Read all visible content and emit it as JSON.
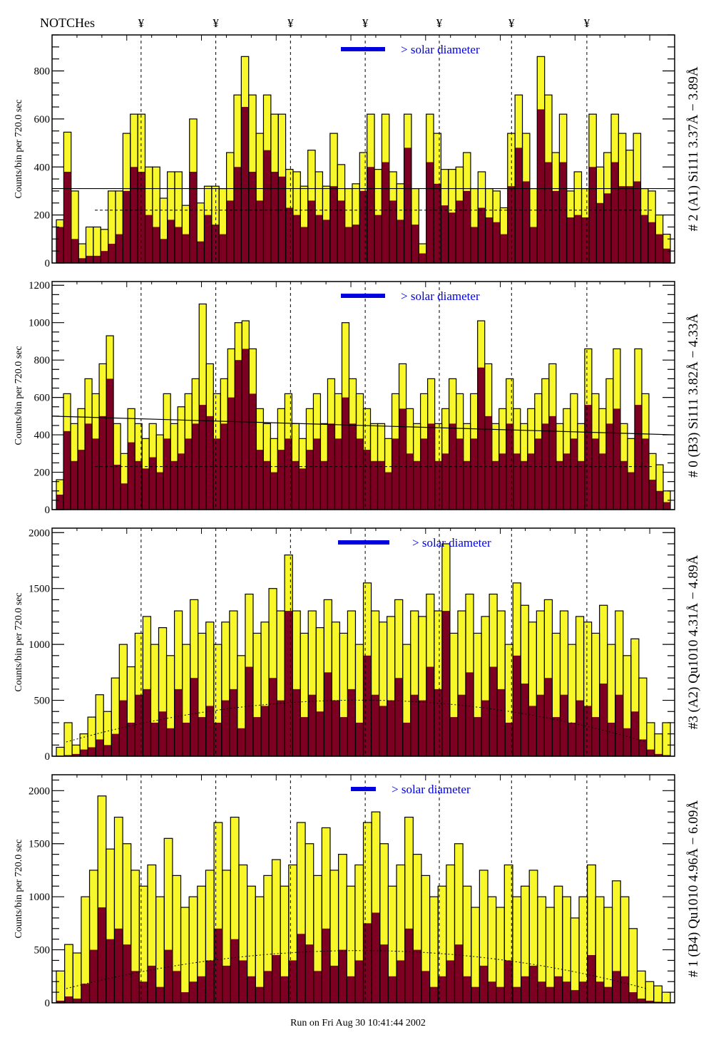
{
  "header": {
    "notches_label": "NOTCHes",
    "notch_glyph": "¥"
  },
  "footer": {
    "run_text": "Run on Fri Aug 30 10:41:44 2002"
  },
  "colors": {
    "total_fill": "#f7f72a",
    "signal_fill": "#7d0022",
    "legend_blue": "#0000e0",
    "outline": "#000000"
  },
  "chart_data": [
    {
      "type": "bar",
      "title": "# 2 (A1) Si111  3.37Å − 3.89Å",
      "ylabel": "Counts/bin per    720.0 sec",
      "xlabel": "",
      "ylim": [
        0,
        950
      ],
      "yticks": [
        0,
        200,
        400,
        600,
        800
      ],
      "minor_step": 50,
      "legend": {
        "label": "> solar diameter",
        "position": "top-center"
      },
      "reference_lines": {
        "solid": 310,
        "dashed": 220
      },
      "notch_positions": [
        0.143,
        0.263,
        0.383,
        0.503,
        0.622,
        0.738,
        0.859
      ],
      "series": [
        {
          "name": "total",
          "values": [
            180,
            545,
            300,
            80,
            150,
            150,
            140,
            300,
            300,
            540,
            620,
            620,
            400,
            400,
            270,
            380,
            380,
            240,
            600,
            250,
            320,
            320,
            310,
            460,
            700,
            860,
            700,
            540,
            700,
            620,
            620,
            390,
            380,
            320,
            470,
            380,
            320,
            540,
            410,
            310,
            330,
            460,
            620,
            390,
            620,
            380,
            330,
            620,
            310,
            80,
            620,
            540,
            390,
            390,
            400,
            460,
            310,
            380,
            310,
            300,
            230,
            540,
            700,
            540,
            310,
            860,
            700,
            460,
            620,
            300,
            380,
            310,
            620,
            400,
            460,
            620,
            540,
            470,
            540,
            310,
            300,
            200,
            120
          ]
        },
        {
          "name": "signal",
          "values": [
            150,
            380,
            100,
            20,
            30,
            30,
            50,
            80,
            120,
            300,
            400,
            380,
            200,
            150,
            100,
            180,
            150,
            120,
            380,
            90,
            200,
            160,
            120,
            260,
            400,
            650,
            380,
            260,
            470,
            380,
            360,
            230,
            200,
            150,
            260,
            200,
            180,
            320,
            260,
            150,
            160,
            300,
            400,
            200,
            420,
            260,
            180,
            480,
            160,
            40,
            420,
            330,
            240,
            210,
            260,
            300,
            150,
            230,
            190,
            170,
            120,
            320,
            480,
            340,
            150,
            640,
            420,
            300,
            420,
            190,
            200,
            190,
            400,
            250,
            290,
            420,
            320,
            320,
            340,
            200,
            170,
            120,
            60
          ]
        }
      ]
    },
    {
      "type": "bar",
      "title": "# 0 (B3) Si111  3.82Å − 4.33Å",
      "ylabel": "Counts/bin per    720.0 sec",
      "xlabel": "",
      "ylim": [
        0,
        1220
      ],
      "yticks": [
        0,
        200,
        400,
        600,
        800,
        1000,
        1200
      ],
      "minor_step": 50,
      "legend": {
        "label": "> solar diameter",
        "position": "top-center"
      },
      "reference_lines": {
        "solid_start": 500,
        "solid_end": 400,
        "dashed": 230
      },
      "notch_positions": [
        0.143,
        0.263,
        0.383,
        0.503,
        0.622,
        0.738,
        0.859
      ],
      "series": [
        {
          "name": "total",
          "values": [
            160,
            620,
            460,
            540,
            700,
            620,
            780,
            930,
            460,
            300,
            540,
            460,
            380,
            460,
            400,
            620,
            460,
            550,
            620,
            700,
            1100,
            780,
            620,
            700,
            860,
            1000,
            1010,
            860,
            540,
            460,
            380,
            540,
            620,
            460,
            380,
            540,
            620,
            460,
            700,
            620,
            1000,
            700,
            620,
            540,
            460,
            460,
            380,
            620,
            780,
            540,
            460,
            620,
            700,
            460,
            540,
            700,
            620,
            460,
            620,
            1010,
            780,
            460,
            540,
            700,
            540,
            460,
            540,
            620,
            700,
            780,
            460,
            540,
            620,
            460,
            860,
            620,
            540,
            700,
            860,
            460,
            380,
            860,
            620,
            300,
            240,
            100
          ]
        },
        {
          "name": "signal",
          "values": [
            80,
            420,
            260,
            320,
            460,
            380,
            500,
            700,
            240,
            140,
            360,
            260,
            220,
            280,
            200,
            380,
            260,
            300,
            380,
            460,
            560,
            500,
            380,
            460,
            600,
            800,
            860,
            620,
            320,
            260,
            200,
            320,
            380,
            260,
            220,
            320,
            380,
            260,
            460,
            380,
            600,
            460,
            380,
            320,
            260,
            260,
            200,
            380,
            540,
            300,
            260,
            380,
            460,
            260,
            300,
            460,
            380,
            260,
            380,
            760,
            500,
            260,
            300,
            460,
            300,
            260,
            300,
            380,
            460,
            500,
            260,
            300,
            380,
            260,
            560,
            380,
            300,
            460,
            540,
            260,
            200,
            560,
            380,
            160,
            100,
            40
          ]
        }
      ]
    },
    {
      "type": "bar",
      "title": "#3 (A2) Qu1010  4.31Å − 4.89Å",
      "ylabel": "Counts/bin per    720.0 sec",
      "xlabel": "",
      "ylim": [
        0,
        2040
      ],
      "yticks": [
        0,
        500,
        1000,
        1500,
        2000
      ],
      "minor_step": 100,
      "legend": {
        "label": "> solar diameter",
        "position": "top-center"
      },
      "reference_lines": {
        "dashed_curve_peak": 700
      },
      "notch_positions": [
        0.143,
        0.263,
        0.383,
        0.503,
        0.622,
        0.738,
        0.859
      ],
      "series": [
        {
          "name": "total",
          "values": [
            80,
            300,
            100,
            200,
            350,
            550,
            400,
            700,
            1000,
            800,
            1100,
            1250,
            1000,
            1150,
            900,
            1300,
            1000,
            1400,
            1100,
            1200,
            1000,
            1200,
            1300,
            900,
            1450,
            1100,
            1200,
            1500,
            1300,
            1800,
            1300,
            1100,
            1300,
            1150,
            1400,
            1200,
            1100,
            1300,
            1000,
            1550,
            1300,
            1200,
            1250,
            1400,
            1000,
            1300,
            1250,
            1450,
            1300,
            1900,
            1100,
            1300,
            1450,
            1100,
            1250,
            1450,
            1300,
            1000,
            1550,
            1350,
            1200,
            1300,
            1400,
            1100,
            1300,
            1000,
            1250,
            1200,
            1100,
            1350,
            1000,
            1300,
            900,
            1050,
            700,
            300,
            200,
            300
          ]
        },
        {
          "name": "signal",
          "values": [
            0,
            10,
            20,
            60,
            80,
            150,
            100,
            200,
            500,
            300,
            550,
            600,
            300,
            400,
            250,
            600,
            300,
            700,
            350,
            450,
            300,
            500,
            600,
            250,
            800,
            350,
            450,
            700,
            500,
            1300,
            600,
            350,
            550,
            400,
            750,
            500,
            350,
            600,
            300,
            900,
            550,
            450,
            500,
            700,
            300,
            550,
            500,
            800,
            600,
            1300,
            350,
            550,
            750,
            350,
            500,
            800,
            600,
            300,
            900,
            650,
            450,
            550,
            700,
            350,
            550,
            300,
            500,
            450,
            350,
            650,
            300,
            550,
            250,
            400,
            150,
            60,
            20,
            10
          ]
        }
      ]
    },
    {
      "type": "bar",
      "title": "# 1 (B4) Qu1010  4.96Å − 6.09Å",
      "ylabel": "Counts/bin per    720.0 sec",
      "xlabel": "",
      "ylim": [
        0,
        2150
      ],
      "yticks": [
        0,
        500,
        1000,
        1500,
        2000
      ],
      "minor_step": 100,
      "legend": {
        "label": "> solar diameter",
        "position": "top-center"
      },
      "reference_lines": {
        "dashed_curve_peak": 680
      },
      "notch_positions": [
        0.143,
        0.263,
        0.383,
        0.503,
        0.622,
        0.738,
        0.859
      ],
      "series": [
        {
          "name": "total",
          "values": [
            300,
            550,
            470,
            1000,
            1250,
            1950,
            1450,
            1750,
            1500,
            1250,
            1100,
            1300,
            1000,
            1550,
            1200,
            900,
            1000,
            1100,
            1250,
            1700,
            1250,
            1750,
            1300,
            1100,
            1000,
            1200,
            1350,
            1100,
            1300,
            1700,
            1500,
            1200,
            1650,
            1250,
            1400,
            1100,
            1300,
            1700,
            1800,
            1500,
            1100,
            1300,
            1750,
            1400,
            1200,
            1000,
            1100,
            1300,
            1500,
            1100,
            900,
            1250,
            1000,
            900,
            1300,
            1000,
            1100,
            1250,
            1000,
            900,
            1100,
            1000,
            800,
            1000,
            1300,
            1000,
            900,
            1150,
            1000,
            700,
            300,
            200,
            160,
            100
          ]
        },
        {
          "name": "signal",
          "values": [
            20,
            60,
            40,
            180,
            500,
            900,
            600,
            700,
            550,
            300,
            200,
            350,
            150,
            500,
            300,
            100,
            200,
            250,
            400,
            700,
            350,
            600,
            400,
            250,
            150,
            300,
            450,
            250,
            400,
            650,
            550,
            300,
            700,
            350,
            500,
            250,
            400,
            750,
            850,
            550,
            250,
            400,
            700,
            500,
            300,
            150,
            250,
            400,
            550,
            250,
            150,
            350,
            200,
            150,
            400,
            150,
            250,
            350,
            200,
            150,
            250,
            200,
            120,
            200,
            450,
            200,
            150,
            300,
            250,
            100,
            40,
            20,
            10,
            5
          ]
        }
      ]
    }
  ]
}
